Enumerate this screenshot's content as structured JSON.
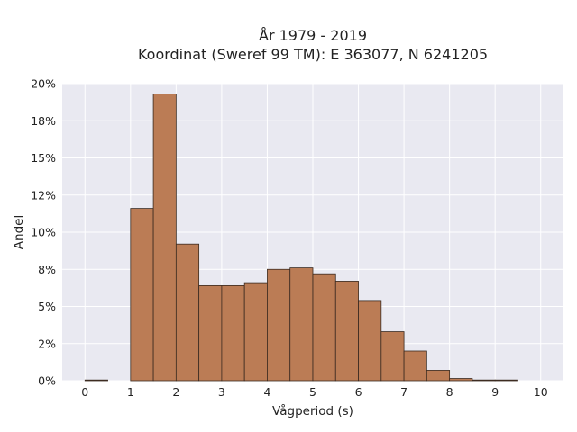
{
  "chart_data": {
    "type": "bar",
    "title_line1": "År 1979 - 2019",
    "title_line2": "Koordinat (Sweref 99 TM): E 363077, N 6241205",
    "xlabel": "Vågperiod (s)",
    "ylabel": "Andel",
    "xlim": [
      -0.5,
      10.5
    ],
    "ylim": [
      0,
      20
    ],
    "x_ticks": [
      0,
      1,
      2,
      3,
      4,
      5,
      6,
      7,
      8,
      9,
      10
    ],
    "y_ticks": [
      0,
      2.5,
      5,
      7.5,
      10,
      12.5,
      15,
      17.5,
      20
    ],
    "y_tick_labels": [
      "0%",
      "2%",
      "5%",
      "8%",
      "10%",
      "12%",
      "15%",
      "18%",
      "20%"
    ],
    "bin_width": 0.5,
    "bins": [
      {
        "x0": 0.0,
        "value": 0.05
      },
      {
        "x0": 0.5,
        "value": 0.0
      },
      {
        "x0": 1.0,
        "value": 11.6
      },
      {
        "x0": 1.5,
        "value": 19.3
      },
      {
        "x0": 2.0,
        "value": 9.2
      },
      {
        "x0": 2.5,
        "value": 6.4
      },
      {
        "x0": 3.0,
        "value": 6.4
      },
      {
        "x0": 3.5,
        "value": 6.6
      },
      {
        "x0": 4.0,
        "value": 7.5
      },
      {
        "x0": 4.5,
        "value": 7.6
      },
      {
        "x0": 5.0,
        "value": 7.2
      },
      {
        "x0": 5.5,
        "value": 6.7
      },
      {
        "x0": 6.0,
        "value": 5.4
      },
      {
        "x0": 6.5,
        "value": 3.3
      },
      {
        "x0": 7.0,
        "value": 2.0
      },
      {
        "x0": 7.5,
        "value": 0.7
      },
      {
        "x0": 8.0,
        "value": 0.15
      },
      {
        "x0": 8.5,
        "value": 0.05
      },
      {
        "x0": 9.0,
        "value": 0.05
      }
    ],
    "bar_color": "#bb7c55",
    "bar_edge_color": "#3a2a20",
    "plot_background": "#e9e9f1",
    "grid": true,
    "grid_color": "#ffffff",
    "legend": false
  }
}
